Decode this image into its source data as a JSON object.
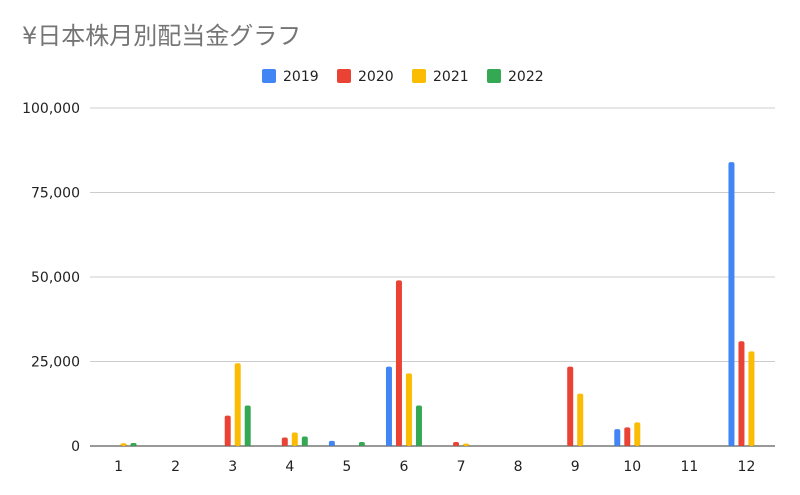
{
  "chart_data": {
    "type": "bar",
    "title": "¥日本株月別配当金グラフ",
    "xlabel": "",
    "ylabel": "",
    "categories": [
      "1",
      "2",
      "3",
      "4",
      "5",
      "6",
      "7",
      "8",
      "9",
      "10",
      "11",
      "12"
    ],
    "ylim": [
      0,
      100000
    ],
    "yticks": [
      "0",
      "25,000",
      "50,000",
      "75,000",
      "100,000"
    ],
    "ytick_values": [
      0,
      25000,
      50000,
      75000,
      100000
    ],
    "grid": true,
    "legend_position": "top",
    "series": [
      {
        "name": "2019",
        "color": "#4285f4",
        "values": [
          0,
          0,
          0,
          0,
          1500,
          23500,
          0,
          0,
          0,
          5000,
          0,
          84000
        ]
      },
      {
        "name": "2020",
        "color": "#ea4335",
        "values": [
          0,
          0,
          9000,
          2500,
          0,
          49000,
          1200,
          0,
          23500,
          5500,
          0,
          31000
        ]
      },
      {
        "name": "2021",
        "color": "#fbbc04",
        "values": [
          800,
          0,
          24500,
          4000,
          0,
          21500,
          700,
          0,
          15500,
          7000,
          0,
          28000
        ]
      },
      {
        "name": "2022",
        "color": "#34a853",
        "values": [
          900,
          0,
          12000,
          2800,
          1200,
          12000,
          0,
          0,
          0,
          0,
          0,
          0
        ]
      }
    ]
  }
}
